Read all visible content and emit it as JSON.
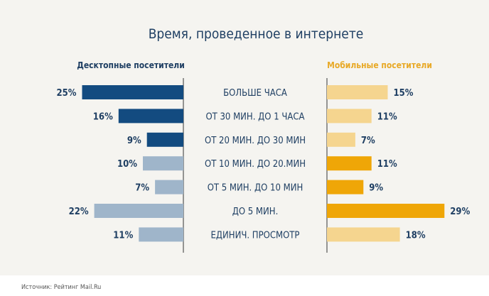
{
  "chart_data": {
    "type": "bar",
    "title": "Время, проведенное в интернете",
    "categories": [
      "БОЛЬШЕ ЧАСА",
      "от 30 мин. до 1 часа",
      "от 20 мин. до 30 мин",
      "от 10 мин. до 20.мин",
      "от 5 мин. до 10 мин",
      "до 5 мин.",
      "единич. просмотр"
    ],
    "series": [
      {
        "name": "Десктопные посетители",
        "values": [
          25,
          16,
          9,
          10,
          7,
          22,
          11
        ],
        "colors": [
          "#134b80",
          "#134b80",
          "#134b80",
          "#9fb5ca",
          "#9fb5ca",
          "#9fb5ca",
          "#9fb5ca"
        ],
        "label_color": "#1f3f63"
      },
      {
        "name": "Мобильные посетители",
        "values": [
          15,
          11,
          7,
          11,
          9,
          29,
          18
        ],
        "colors": [
          "#f5d58f",
          "#f5d58f",
          "#f5d58f",
          "#efa607",
          "#efa607",
          "#efa607",
          "#f5d58f"
        ],
        "label_color": "#e8a927"
      }
    ],
    "unit": "%"
  },
  "source": "Источник: Рейтинг Mail.Ru"
}
